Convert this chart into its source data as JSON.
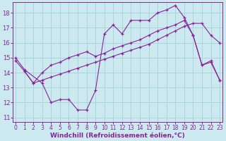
{
  "background_color": "#cce9f0",
  "grid_color": "#aad4de",
  "line_color": "#882299",
  "xlim": [
    -0.3,
    23.3
  ],
  "ylim": [
    10.7,
    18.7
  ],
  "xlabel": "Windchill (Refroidissement éolien,°C)",
  "yticks": [
    11,
    12,
    13,
    14,
    15,
    16,
    17,
    18
  ],
  "xticks": [
    0,
    1,
    2,
    3,
    4,
    5,
    6,
    7,
    8,
    9,
    10,
    11,
    12,
    13,
    14,
    15,
    16,
    17,
    18,
    19,
    20,
    21,
    22,
    23
  ],
  "curve1_x": [
    0,
    1,
    3,
    4,
    5,
    6,
    7,
    8,
    9,
    10,
    11,
    12,
    13,
    14,
    15,
    16,
    17,
    18,
    19,
    20,
    21,
    22,
    23
  ],
  "curve1_y": [
    15.0,
    14.2,
    13.3,
    12.0,
    12.2,
    12.2,
    11.5,
    11.5,
    12.8,
    16.6,
    17.2,
    16.6,
    17.5,
    17.5,
    17.5,
    18.0,
    18.2,
    18.5,
    17.7,
    16.5,
    14.5,
    14.8,
    13.5
  ],
  "curve2_x": [
    1,
    2,
    3,
    4,
    5,
    6,
    7,
    8,
    9,
    10,
    11,
    12,
    13,
    14,
    15,
    16,
    17,
    18,
    19,
    20,
    21,
    22,
    23
  ],
  "curve2_y": [
    14.1,
    13.3,
    14.0,
    14.5,
    14.7,
    15.0,
    15.2,
    15.4,
    15.1,
    15.3,
    15.6,
    15.8,
    16.0,
    16.2,
    16.5,
    16.8,
    17.0,
    17.2,
    17.5,
    16.5,
    14.5,
    14.7,
    13.5
  ],
  "curve3_x": [
    0,
    1,
    2,
    3,
    4,
    5,
    6,
    7,
    8,
    9,
    10,
    11,
    12,
    13,
    14,
    15,
    16,
    17,
    18,
    19,
    20,
    21,
    22,
    23
  ],
  "curve3_y": [
    14.8,
    14.1,
    13.3,
    13.5,
    13.7,
    13.9,
    14.1,
    14.3,
    14.5,
    14.7,
    14.9,
    15.1,
    15.3,
    15.5,
    15.7,
    15.9,
    16.2,
    16.5,
    16.8,
    17.1,
    17.3,
    17.3,
    16.5,
    16.0
  ],
  "tick_fontsize": 5.5,
  "axis_fontsize": 6.5
}
